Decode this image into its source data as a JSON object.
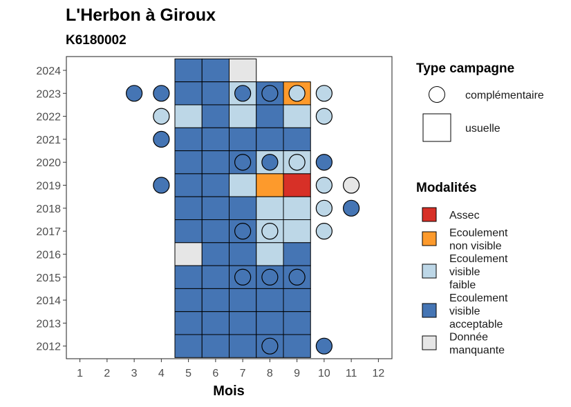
{
  "title": "L'Herbon à Giroux",
  "subtitle": "K6180002",
  "chart_data": {
    "type": "heatmap",
    "xlabel": "Mois",
    "ylabel": "",
    "x_ticks": [
      1,
      2,
      3,
      4,
      5,
      6,
      7,
      8,
      9,
      10,
      11,
      12
    ],
    "y_ticks": [
      2012,
      2013,
      2014,
      2015,
      2016,
      2017,
      2018,
      2019,
      2020,
      2021,
      2022,
      2023,
      2024
    ],
    "xlim": [
      0.5,
      12.5
    ],
    "ylim": [
      2011.45,
      2024.6
    ],
    "grid": false,
    "legend_placement": "right",
    "colors": {
      "assec": "#d73027",
      "ecoulement_non_visible": "#fd9a2c",
      "ecoulement_visible_faible": "#bdd7e7",
      "ecoulement_visible_acceptable": "#4575b4",
      "donnee_manquante": "#e6e6e6"
    },
    "legend_type": {
      "title": "Type campagne",
      "items": [
        {
          "key": "complementaire",
          "label": "complémentaire",
          "shape": "circle"
        },
        {
          "key": "usuelle",
          "label": "usuelle",
          "shape": "square"
        }
      ]
    },
    "legend_modalites": {
      "title": "Modalités",
      "items": [
        {
          "key": "assec",
          "lines": [
            "Assec"
          ]
        },
        {
          "key": "ecoulement_non_visible",
          "lines": [
            "Ecoulement",
            "non visible"
          ]
        },
        {
          "key": "ecoulement_visible_faible",
          "lines": [
            "Ecoulement",
            "visible",
            "faible"
          ]
        },
        {
          "key": "ecoulement_visible_acceptable",
          "lines": [
            "Ecoulement",
            "visible",
            "acceptable"
          ]
        },
        {
          "key": "donnee_manquante",
          "lines": [
            "Donnée",
            "manquante"
          ]
        }
      ]
    },
    "usuelle": [
      {
        "year": 2024,
        "month": 5,
        "m": "ecoulement_visible_acceptable"
      },
      {
        "year": 2024,
        "month": 6,
        "m": "ecoulement_visible_acceptable"
      },
      {
        "year": 2024,
        "month": 7,
        "m": "donnee_manquante"
      },
      {
        "year": 2023,
        "month": 5,
        "m": "ecoulement_visible_acceptable"
      },
      {
        "year": 2023,
        "month": 6,
        "m": "ecoulement_visible_acceptable"
      },
      {
        "year": 2023,
        "month": 7,
        "m": "ecoulement_visible_faible"
      },
      {
        "year": 2023,
        "month": 8,
        "m": "ecoulement_visible_acceptable"
      },
      {
        "year": 2023,
        "month": 9,
        "m": "ecoulement_non_visible"
      },
      {
        "year": 2022,
        "month": 5,
        "m": "ecoulement_visible_faible"
      },
      {
        "year": 2022,
        "month": 6,
        "m": "ecoulement_visible_acceptable"
      },
      {
        "year": 2022,
        "month": 7,
        "m": "ecoulement_visible_faible"
      },
      {
        "year": 2022,
        "month": 8,
        "m": "ecoulement_visible_acceptable"
      },
      {
        "year": 2022,
        "month": 9,
        "m": "ecoulement_visible_faible"
      },
      {
        "year": 2021,
        "month": 5,
        "m": "ecoulement_visible_acceptable"
      },
      {
        "year": 2021,
        "month": 6,
        "m": "ecoulement_visible_acceptable"
      },
      {
        "year": 2021,
        "month": 7,
        "m": "ecoulement_visible_acceptable"
      },
      {
        "year": 2021,
        "month": 8,
        "m": "ecoulement_visible_acceptable"
      },
      {
        "year": 2021,
        "month": 9,
        "m": "ecoulement_visible_acceptable"
      },
      {
        "year": 2020,
        "month": 5,
        "m": "ecoulement_visible_acceptable"
      },
      {
        "year": 2020,
        "month": 6,
        "m": "ecoulement_visible_acceptable"
      },
      {
        "year": 2020,
        "month": 7,
        "m": "ecoulement_visible_acceptable"
      },
      {
        "year": 2020,
        "month": 8,
        "m": "ecoulement_visible_faible"
      },
      {
        "year": 2020,
        "month": 9,
        "m": "ecoulement_visible_faible"
      },
      {
        "year": 2019,
        "month": 5,
        "m": "ecoulement_visible_acceptable"
      },
      {
        "year": 2019,
        "month": 6,
        "m": "ecoulement_visible_acceptable"
      },
      {
        "year": 2019,
        "month": 7,
        "m": "ecoulement_visible_faible"
      },
      {
        "year": 2019,
        "month": 8,
        "m": "ecoulement_non_visible"
      },
      {
        "year": 2019,
        "month": 9,
        "m": "assec"
      },
      {
        "year": 2018,
        "month": 5,
        "m": "ecoulement_visible_acceptable"
      },
      {
        "year": 2018,
        "month": 6,
        "m": "ecoulement_visible_acceptable"
      },
      {
        "year": 2018,
        "month": 7,
        "m": "ecoulement_visible_acceptable"
      },
      {
        "year": 2018,
        "month": 8,
        "m": "ecoulement_visible_faible"
      },
      {
        "year": 2018,
        "month": 9,
        "m": "ecoulement_visible_faible"
      },
      {
        "year": 2017,
        "month": 5,
        "m": "ecoulement_visible_acceptable"
      },
      {
        "year": 2017,
        "month": 6,
        "m": "ecoulement_visible_acceptable"
      },
      {
        "year": 2017,
        "month": 7,
        "m": "ecoulement_visible_acceptable"
      },
      {
        "year": 2017,
        "month": 8,
        "m": "ecoulement_visible_faible"
      },
      {
        "year": 2017,
        "month": 9,
        "m": "ecoulement_visible_faible"
      },
      {
        "year": 2016,
        "month": 5,
        "m": "donnee_manquante"
      },
      {
        "year": 2016,
        "month": 6,
        "m": "ecoulement_visible_acceptable"
      },
      {
        "year": 2016,
        "month": 7,
        "m": "ecoulement_visible_acceptable"
      },
      {
        "year": 2016,
        "month": 8,
        "m": "ecoulement_visible_faible"
      },
      {
        "year": 2016,
        "month": 9,
        "m": "ecoulement_visible_acceptable"
      },
      {
        "year": 2015,
        "month": 5,
        "m": "ecoulement_visible_acceptable"
      },
      {
        "year": 2015,
        "month": 6,
        "m": "ecoulement_visible_acceptable"
      },
      {
        "year": 2015,
        "month": 7,
        "m": "ecoulement_visible_acceptable"
      },
      {
        "year": 2015,
        "month": 8,
        "m": "ecoulement_visible_acceptable"
      },
      {
        "year": 2015,
        "month": 9,
        "m": "ecoulement_visible_acceptable"
      },
      {
        "year": 2014,
        "month": 5,
        "m": "ecoulement_visible_acceptable"
      },
      {
        "year": 2014,
        "month": 6,
        "m": "ecoulement_visible_acceptable"
      },
      {
        "year": 2014,
        "month": 7,
        "m": "ecoulement_visible_acceptable"
      },
      {
        "year": 2014,
        "month": 8,
        "m": "ecoulement_visible_acceptable"
      },
      {
        "year": 2014,
        "month": 9,
        "m": "ecoulement_visible_acceptable"
      },
      {
        "year": 2013,
        "month": 5,
        "m": "ecoulement_visible_acceptable"
      },
      {
        "year": 2013,
        "month": 6,
        "m": "ecoulement_visible_acceptable"
      },
      {
        "year": 2013,
        "month": 7,
        "m": "ecoulement_visible_acceptable"
      },
      {
        "year": 2013,
        "month": 8,
        "m": "ecoulement_visible_acceptable"
      },
      {
        "year": 2013,
        "month": 9,
        "m": "ecoulement_visible_acceptable"
      },
      {
        "year": 2012,
        "month": 5,
        "m": "ecoulement_visible_acceptable"
      },
      {
        "year": 2012,
        "month": 6,
        "m": "ecoulement_visible_acceptable"
      },
      {
        "year": 2012,
        "month": 7,
        "m": "ecoulement_visible_acceptable"
      },
      {
        "year": 2012,
        "month": 8,
        "m": "ecoulement_visible_acceptable"
      },
      {
        "year": 2012,
        "month": 9,
        "m": "ecoulement_visible_acceptable"
      }
    ],
    "complementaire": [
      {
        "year": 2023,
        "month": 3,
        "m": "ecoulement_visible_acceptable"
      },
      {
        "year": 2023,
        "month": 4,
        "m": "ecoulement_visible_acceptable"
      },
      {
        "year": 2023,
        "month": 7,
        "m": "ecoulement_visible_acceptable"
      },
      {
        "year": 2023,
        "month": 8,
        "m": "ecoulement_visible_acceptable"
      },
      {
        "year": 2023,
        "month": 9,
        "m": "ecoulement_visible_faible"
      },
      {
        "year": 2023,
        "month": 10,
        "m": "ecoulement_visible_faible"
      },
      {
        "year": 2022,
        "month": 4,
        "m": "ecoulement_visible_faible"
      },
      {
        "year": 2022,
        "month": 10,
        "m": "ecoulement_visible_faible"
      },
      {
        "year": 2021,
        "month": 4,
        "m": "ecoulement_visible_acceptable"
      },
      {
        "year": 2020,
        "month": 7,
        "m": "ecoulement_visible_acceptable"
      },
      {
        "year": 2020,
        "month": 8,
        "m": "ecoulement_visible_acceptable"
      },
      {
        "year": 2020,
        "month": 9,
        "m": "ecoulement_visible_faible"
      },
      {
        "year": 2020,
        "month": 10,
        "m": "ecoulement_visible_acceptable"
      },
      {
        "year": 2019,
        "month": 4,
        "m": "ecoulement_visible_acceptable"
      },
      {
        "year": 2019,
        "month": 10,
        "m": "ecoulement_visible_faible"
      },
      {
        "year": 2019,
        "month": 11,
        "m": "donnee_manquante"
      },
      {
        "year": 2018,
        "month": 10,
        "m": "ecoulement_visible_faible"
      },
      {
        "year": 2018,
        "month": 11,
        "m": "ecoulement_visible_acceptable"
      },
      {
        "year": 2017,
        "month": 7,
        "m": "ecoulement_visible_acceptable"
      },
      {
        "year": 2017,
        "month": 8,
        "m": "ecoulement_visible_faible"
      },
      {
        "year": 2017,
        "month": 10,
        "m": "ecoulement_visible_faible"
      },
      {
        "year": 2015,
        "month": 7,
        "m": "ecoulement_visible_acceptable"
      },
      {
        "year": 2015,
        "month": 8,
        "m": "ecoulement_visible_acceptable"
      },
      {
        "year": 2015,
        "month": 9,
        "m": "ecoulement_visible_acceptable"
      },
      {
        "year": 2012,
        "month": 8,
        "m": "ecoulement_visible_acceptable"
      },
      {
        "year": 2012,
        "month": 10,
        "m": "ecoulement_visible_acceptable"
      }
    ]
  }
}
